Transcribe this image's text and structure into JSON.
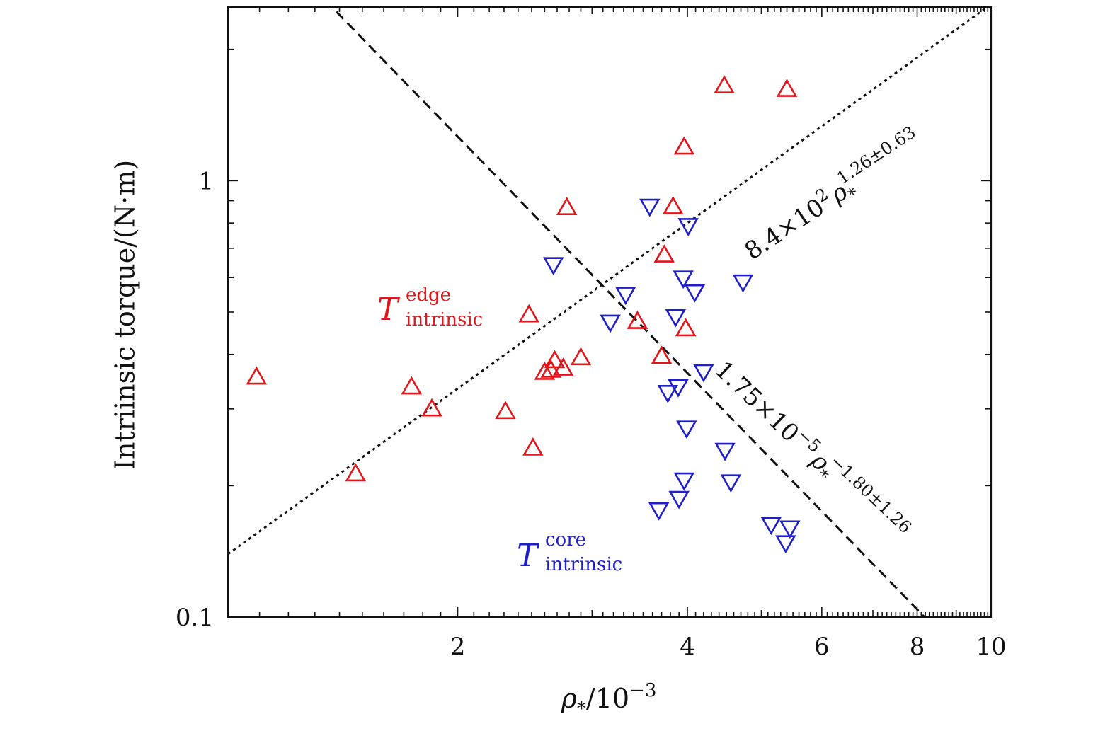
{
  "chart_data": {
    "type": "scatter",
    "x_scale": "log",
    "y_scale": "log",
    "xlim": [
      1.0,
      10.0
    ],
    "ylim": [
      0.1,
      2.5
    ],
    "xlabel": {
      "base": "ρ",
      "sub": "*",
      "rest": "/10",
      "sup": "−3"
    },
    "ylabel": "Intriinsic torque/(N·m)",
    "x_ticks": [
      {
        "value": 2,
        "label": "2"
      },
      {
        "value": 4,
        "label": "4"
      },
      {
        "value": 6,
        "label": "6"
      },
      {
        "value": 8,
        "label": "8"
      },
      {
        "value": 10,
        "label": "10"
      }
    ],
    "y_ticks": [
      {
        "value": 0.1,
        "label": "0.1"
      },
      {
        "value": 1,
        "label": "1"
      }
    ],
    "grid": false,
    "series": [
      {
        "id": "edge",
        "marker": "triangle-up",
        "color": "#e0161b",
        "label_main": "T",
        "label_sup": "edge",
        "label_sub": "intrinsic",
        "x": [
          1.09,
          1.47,
          1.74,
          1.85,
          2.31,
          2.48,
          2.51,
          2.6,
          2.65,
          2.68,
          2.75,
          2.78,
          2.9,
          3.44,
          3.7,
          3.73,
          3.83,
          3.96,
          3.98,
          4.47,
          5.4
        ],
        "y": [
          0.355,
          0.213,
          0.337,
          0.3,
          0.296,
          0.493,
          0.244,
          0.364,
          0.368,
          0.387,
          0.372,
          0.868,
          0.393,
          0.476,
          0.396,
          0.676,
          0.872,
          1.195,
          0.458,
          1.65,
          1.62
        ]
      },
      {
        "id": "core",
        "marker": "triangle-down",
        "color": "#1f1fc8",
        "label_main": "T",
        "label_sup": "core",
        "label_sub": "intrinsic",
        "x": [
          2.67,
          3.17,
          3.32,
          3.57,
          3.67,
          3.77,
          3.86,
          3.89,
          3.9,
          3.95,
          3.96,
          3.99,
          4.01,
          4.09,
          4.2,
          4.48,
          4.56,
          4.73,
          5.15,
          5.38,
          5.45
        ],
        "y": [
          0.642,
          0.474,
          0.549,
          0.874,
          0.176,
          0.327,
          0.488,
          0.337,
          0.187,
          0.598,
          0.206,
          0.271,
          0.789,
          0.556,
          0.365,
          0.241,
          0.204,
          0.586,
          0.163,
          0.148,
          0.16
        ]
      }
    ],
    "fit_lines": [
      {
        "id": "edge-fit",
        "style": "dotted",
        "coefficient": 840,
        "exponent": 1.26,
        "label_prefix": "8.4×10",
        "label_exp": "2",
        "label_var": "ρ",
        "label_var_sub": "*",
        "label_pow": "1.26±0.63"
      },
      {
        "id": "core-fit",
        "style": "dashed",
        "coefficient": 1.75e-05,
        "exponent": -1.8,
        "label_prefix": "1.75×10",
        "label_exp": "−5",
        "label_var": "ρ",
        "label_var_sub": "*",
        "label_pow": "−1.80±1.26"
      }
    ]
  }
}
